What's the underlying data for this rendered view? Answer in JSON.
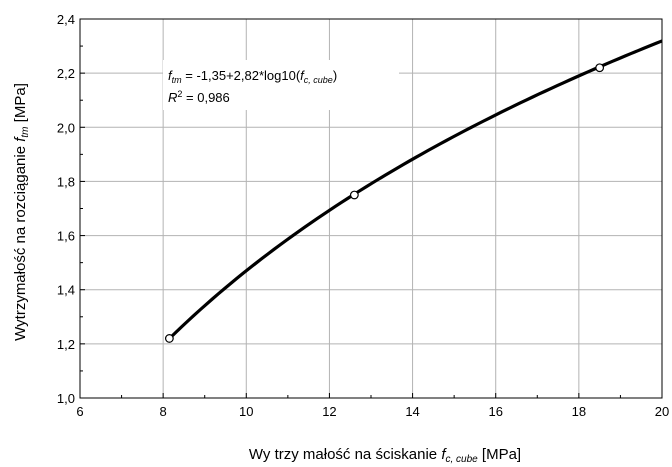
{
  "chart_data": {
    "type": "scatter",
    "xlabel_main": "Wy trzy małość na ściskanie ",
    "xlabel_var": "f",
    "xlabel_sub": "c, cube",
    "xlabel_unit": " [MPa]",
    "ylabel_main": "Wytrzymałość na rozciąganie ",
    "ylabel_var": "f",
    "ylabel_sub": "tm",
    "ylabel_unit": " [MPa]",
    "xlim": [
      6,
      20
    ],
    "ylim": [
      1.0,
      2.4
    ],
    "xticks": [
      "6",
      "8",
      "10",
      "12",
      "14",
      "16",
      "18",
      "20"
    ],
    "yticks": [
      "1,0",
      "1,2",
      "1,4",
      "1,6",
      "1,8",
      "2,0",
      "2,2",
      "2,4"
    ],
    "grid": true,
    "points": [
      {
        "x": 8.15,
        "y": 1.22
      },
      {
        "x": 12.6,
        "y": 1.75
      },
      {
        "x": 18.5,
        "y": 2.22
      }
    ],
    "fit": {
      "a": -1.35,
      "b": 2.82,
      "x_from": 8.15,
      "x_to": 20
    },
    "equation": {
      "var": "f",
      "var_sub": "tm",
      "rhs": " = -1,35+2,82*log10(",
      "arg_var": "f",
      "arg_sub": "c, cube",
      "close": ")",
      "r2_var": "R",
      "r2_sup": "2",
      "r2_rhs": " = 0,986"
    }
  }
}
